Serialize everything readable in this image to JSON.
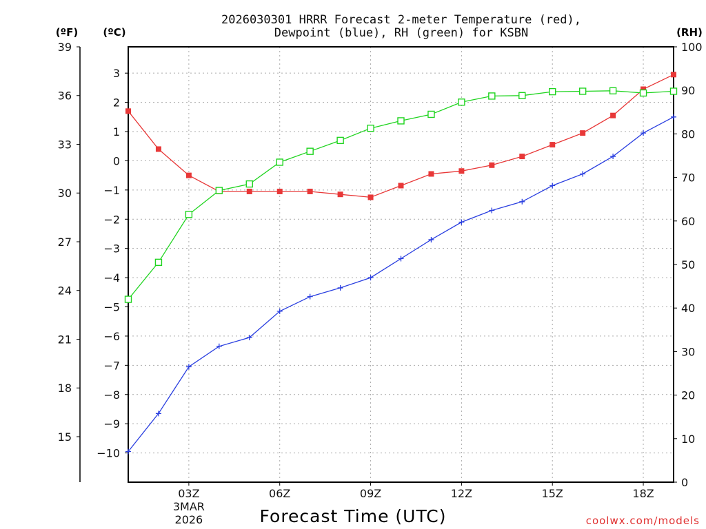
{
  "chart_data": {
    "type": "line",
    "title_line1": "2026030301 HRRR Forecast 2-meter Temperature (red),",
    "title_line2": "Dewpoint (blue), RH (green) for KSBN",
    "left_outer_label": "(ºF)",
    "left_inner_label": "(ºC)",
    "right_label": "(RH)",
    "xlabel": "Forecast Time (UTC)",
    "credit": "coolwx.com/models",
    "x_hours": [
      1,
      2,
      3,
      4,
      5,
      6,
      7,
      8,
      9,
      10,
      11,
      12,
      13,
      14,
      15,
      16,
      17,
      18,
      19
    ],
    "xlim": [
      1,
      19
    ],
    "x_ticks": [
      {
        "hour": 3,
        "label": "03Z",
        "sub1": "3MAR",
        "sub2": "2026"
      },
      {
        "hour": 6,
        "label": "06Z",
        "sub1": "",
        "sub2": ""
      },
      {
        "hour": 9,
        "label": "09Z",
        "sub1": "",
        "sub2": ""
      },
      {
        "hour": 12,
        "label": "12Z",
        "sub1": "",
        "sub2": ""
      },
      {
        "hour": 15,
        "label": "15Z",
        "sub1": "",
        "sub2": ""
      },
      {
        "hour": 18,
        "label": "18Z",
        "sub1": "",
        "sub2": ""
      }
    ],
    "celsius_axis": {
      "range": [
        -11,
        3.9
      ],
      "ticks": [
        3,
        2,
        1,
        0,
        -1,
        -2,
        -3,
        -4,
        -5,
        -6,
        -7,
        -8,
        -9,
        -10
      ],
      "tick_labels": [
        "3",
        "2",
        "1",
        "0",
        "−1",
        "−2",
        "−3",
        "−4",
        "−5",
        "−6",
        "−7",
        "−8",
        "−9",
        "−10"
      ]
    },
    "fahrenheit_axis": {
      "range": [
        12.2,
        39.0
      ],
      "ticks": [
        39,
        36,
        33,
        30,
        27,
        24,
        21,
        18,
        15
      ],
      "tick_labels": [
        "39",
        "36",
        "33",
        "30",
        "27",
        "24",
        "21",
        "18",
        "15"
      ]
    },
    "rh_axis": {
      "range": [
        0,
        100
      ],
      "ticks": [
        100,
        90,
        80,
        70,
        60,
        50,
        40,
        30,
        20,
        10,
        0
      ],
      "tick_labels": [
        "100",
        "90",
        "80",
        "70",
        "60",
        "50",
        "40",
        "30",
        "20",
        "10",
        "0"
      ]
    },
    "series": [
      {
        "name": "Temperature",
        "axis": "C",
        "color": "#e83838",
        "marker": "filled-square",
        "values": [
          1.7,
          0.4,
          -0.5,
          -1.05,
          -1.05,
          -1.05,
          -1.05,
          -1.15,
          -1.25,
          -0.85,
          -0.45,
          -0.35,
          -0.15,
          0.15,
          0.55,
          0.95,
          1.55,
          2.45,
          2.95
        ]
      },
      {
        "name": "Dewpoint",
        "axis": "C",
        "color": "#2a3fe0",
        "marker": "plus",
        "values": [
          -9.95,
          -8.65,
          -7.05,
          -6.35,
          -6.05,
          -5.15,
          -4.65,
          -4.35,
          -4.0,
          -3.35,
          -2.7,
          -2.1,
          -1.7,
          -1.4,
          -0.85,
          -0.45,
          0.15,
          0.95,
          1.5
        ]
      },
      {
        "name": "RH",
        "axis": "RH",
        "color": "#1fd41f",
        "marker": "open-square",
        "values": [
          42,
          50.5,
          61.5,
          67,
          68.5,
          73.5,
          76,
          78.5,
          81.3,
          83,
          84.5,
          87.3,
          88.7,
          88.8,
          89.7,
          89.8,
          89.9,
          89.4,
          89.8
        ]
      }
    ],
    "colors": {
      "grid": "#aaaaaa",
      "frame": "#000000",
      "credit": "#e03030"
    }
  }
}
